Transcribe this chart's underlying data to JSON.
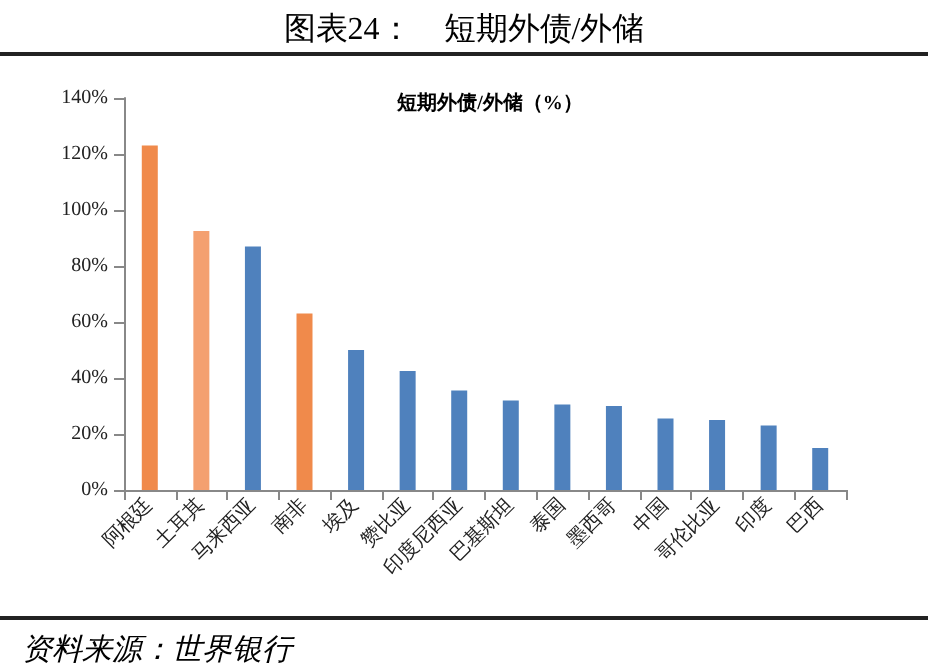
{
  "chart_data": {
    "type": "bar",
    "title": "图表24：    短期外债/外储",
    "subtitle": "短期外债/外储（%）",
    "categories": [
      "阿根廷",
      "土耳其",
      "马来西亚",
      "南非",
      "埃及",
      "赞比亚",
      "印度尼西亚",
      "巴基斯坦",
      "泰国",
      "墨西哥",
      "中国",
      "哥伦比亚",
      "印度",
      "巴西"
    ],
    "values": [
      123,
      92.5,
      87,
      63,
      50,
      42.5,
      35.5,
      32,
      30.5,
      30,
      25.5,
      25,
      23,
      15
    ],
    "colors": [
      "#f08a4b",
      "#f4a070",
      "#4f81bd",
      "#f08a4b",
      "#4f81bd",
      "#4f81bd",
      "#4f81bd",
      "#4f81bd",
      "#4f81bd",
      "#4f81bd",
      "#4f81bd",
      "#4f81bd",
      "#4f81bd",
      "#4f81bd"
    ],
    "ylim": [
      0,
      140
    ],
    "yticks": [
      {
        "value": 0,
        "label": "0%"
      },
      {
        "value": 20,
        "label": "20%"
      },
      {
        "value": 40,
        "label": "40%"
      },
      {
        "value": 60,
        "label": "60%"
      },
      {
        "value": 80,
        "label": "80%"
      },
      {
        "value": 100,
        "label": "100%"
      },
      {
        "value": 120,
        "label": "120%"
      },
      {
        "value": 140,
        "label": "140%"
      }
    ],
    "annotations": [
      "资料来源：世界银行"
    ]
  }
}
